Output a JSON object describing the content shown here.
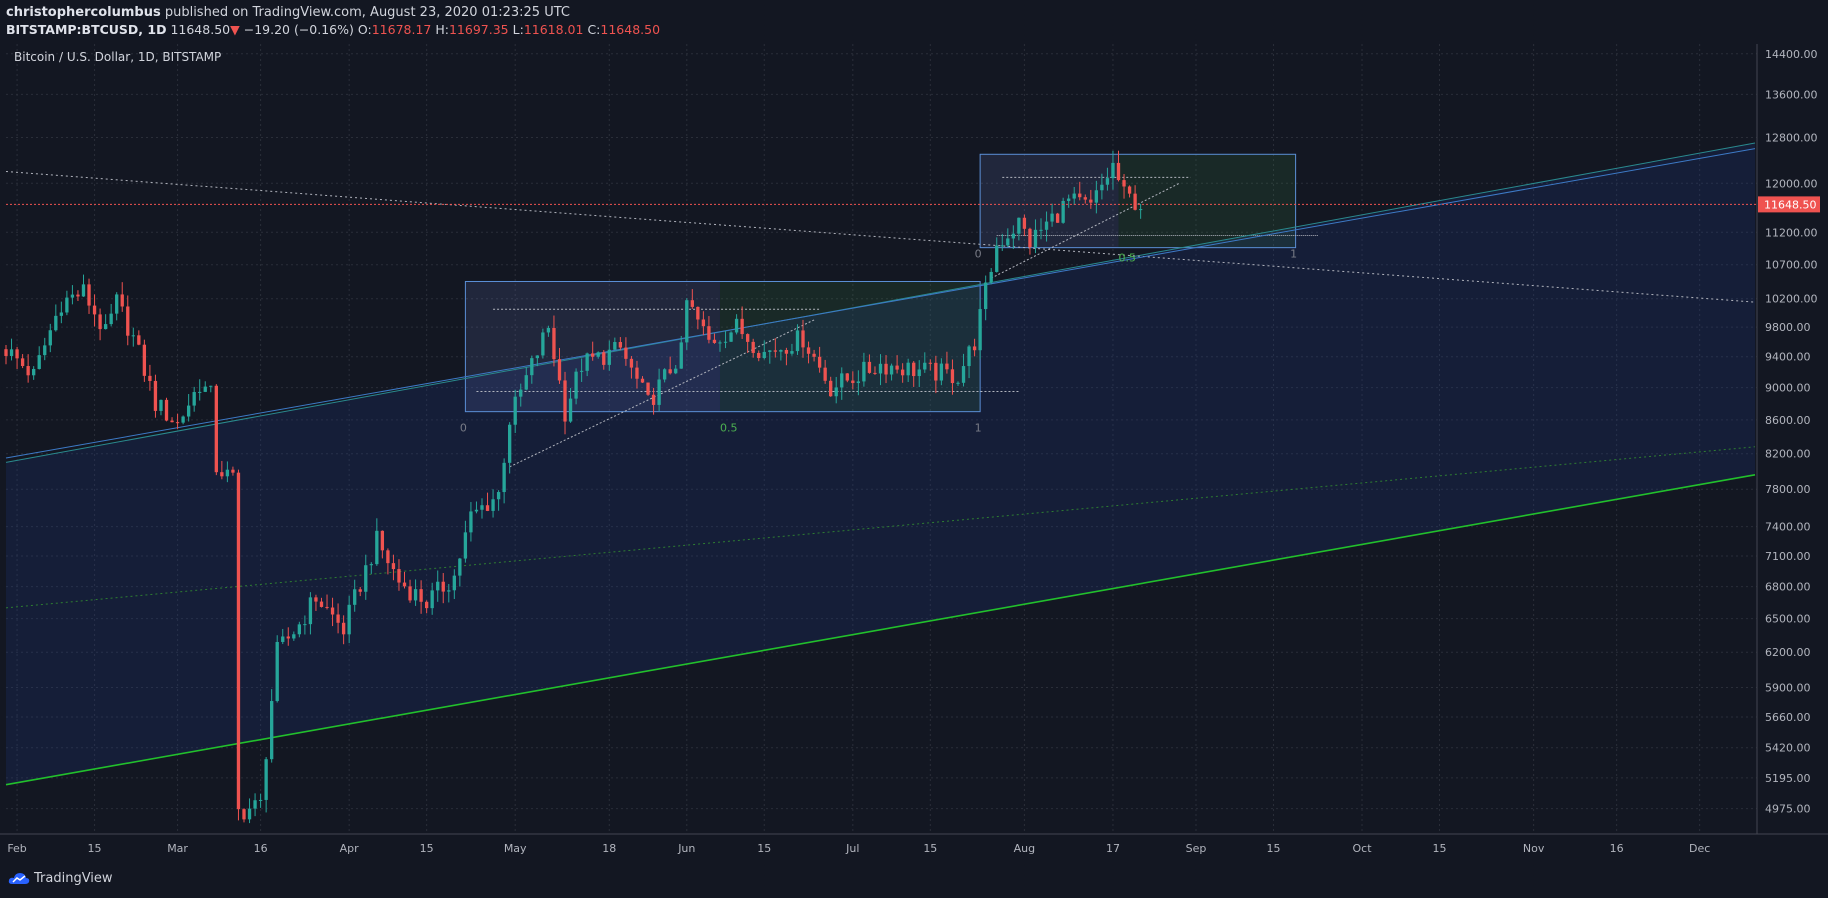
{
  "header": {
    "author": "christophercolumbus",
    "published": "published on TradingView.com, August 23, 2020 01:23:25 UTC",
    "symbol": "BITSTAMP:BTCUSD, 1D",
    "last": "11648.50",
    "arrow": "▼",
    "change": "−19.20 (−0.16%)",
    "o_label": "O:",
    "o": "11678.17",
    "h_label": "H:",
    "h": "11697.35",
    "l_label": "L:",
    "l": "11618.01",
    "c_label": "C:",
    "c": "11648.50"
  },
  "footer": {
    "brand": "TradingView"
  },
  "colors": {
    "background": "#131722",
    "up": "#26a69a",
    "down": "#ef5350",
    "trend": "#22c02c"
  },
  "chart_data": {
    "type": "candlestick",
    "title": "Bitcoin / U.S. Dollar, 1D, BITSTAMP",
    "y_scale": "log",
    "ylim": [
      4800,
      14600
    ],
    "xlim": [
      "2020-01-30",
      "2020-12-11"
    ],
    "y_ticks": [
      14400,
      13600,
      12800,
      12000,
      11200,
      10700,
      10200,
      9800,
      9400,
      9000,
      8600,
      8200,
      7800,
      7400,
      7100,
      6800,
      6500,
      6200,
      5900,
      5660,
      5420,
      5195,
      4975
    ],
    "y_tick_labels": [
      "14400.00",
      "13600.00",
      "12800.00",
      "12000.00",
      "11200.00",
      "10700.00",
      "10200.00",
      "9800.00",
      "9400.00",
      "9000.00",
      "8600.00",
      "8200.00",
      "7800.00",
      "7400.00",
      "7100.00",
      "6800.00",
      "6500.00",
      "6200.00",
      "5900.00",
      "5660.00",
      "5420.00",
      "5195.00",
      "4975.00"
    ],
    "x_ticks": [
      {
        "date": "2020-02-01",
        "label": "Feb"
      },
      {
        "date": "2020-02-15",
        "label": "15"
      },
      {
        "date": "2020-03-01",
        "label": "Mar"
      },
      {
        "date": "2020-03-16",
        "label": "16"
      },
      {
        "date": "2020-04-01",
        "label": "Apr"
      },
      {
        "date": "2020-04-15",
        "label": "15"
      },
      {
        "date": "2020-05-01",
        "label": "May"
      },
      {
        "date": "2020-05-18",
        "label": "18"
      },
      {
        "date": "2020-06-01",
        "label": "Jun"
      },
      {
        "date": "2020-06-15",
        "label": "15"
      },
      {
        "date": "2020-07-01",
        "label": "Jul"
      },
      {
        "date": "2020-07-15",
        "label": "15"
      },
      {
        "date": "2020-08-01",
        "label": "Aug"
      },
      {
        "date": "2020-08-17",
        "label": "17"
      },
      {
        "date": "2020-09-01",
        "label": "Sep"
      },
      {
        "date": "2020-09-15",
        "label": "15"
      },
      {
        "date": "2020-10-01",
        "label": "Oct"
      },
      {
        "date": "2020-10-15",
        "label": "15"
      },
      {
        "date": "2020-11-01",
        "label": "Nov"
      },
      {
        "date": "2020-11-16",
        "label": "16"
      },
      {
        "date": "2020-12-01",
        "label": "Dec"
      }
    ],
    "last_price": 11648.5,
    "last_price_label": "11648.50",
    "close_anchors": [
      [
        "2020-01-30",
        9500
      ],
      [
        "2020-02-04",
        9150
      ],
      [
        "2020-02-09",
        10150
      ],
      [
        "2020-02-13",
        10300
      ],
      [
        "2020-02-17",
        9700
      ],
      [
        "2020-02-19",
        10150
      ],
      [
        "2020-02-22",
        9650
      ],
      [
        "2020-02-26",
        8800
      ],
      [
        "2020-03-01",
        8550
      ],
      [
        "2020-03-05",
        9050
      ],
      [
        "2020-03-07",
        8900
      ],
      [
        "2020-03-08",
        8050
      ],
      [
        "2020-03-11",
        7900
      ],
      [
        "2020-03-12",
        4950
      ],
      [
        "2020-03-16",
        5000
      ],
      [
        "2020-03-19",
        6200
      ],
      [
        "2020-03-23",
        6450
      ],
      [
        "2020-03-26",
        6700
      ],
      [
        "2020-03-31",
        6400
      ],
      [
        "2020-04-06",
        7250
      ],
      [
        "2020-04-10",
        6850
      ],
      [
        "2020-04-15",
        6650
      ],
      [
        "2020-04-20",
        6900
      ],
      [
        "2020-04-23",
        7500
      ],
      [
        "2020-04-28",
        7750
      ],
      [
        "2020-04-30",
        8600
      ],
      [
        "2020-05-07",
        9800
      ],
      [
        "2020-05-10",
        8700
      ],
      [
        "2020-05-13",
        9300
      ],
      [
        "2020-05-20",
        9500
      ],
      [
        "2020-05-25",
        8800
      ],
      [
        "2020-05-31",
        9450
      ],
      [
        "2020-06-01",
        10150
      ],
      [
        "2020-06-05",
        9600
      ],
      [
        "2020-06-10",
        9800
      ],
      [
        "2020-06-15",
        9450
      ],
      [
        "2020-06-22",
        9650
      ],
      [
        "2020-06-27",
        9000
      ],
      [
        "2020-07-06",
        9300
      ],
      [
        "2020-07-15",
        9200
      ],
      [
        "2020-07-20",
        9150
      ],
      [
        "2020-07-23",
        9600
      ],
      [
        "2020-07-27",
        11000
      ],
      [
        "2020-07-31",
        11350
      ],
      [
        "2020-08-02",
        11050
      ],
      [
        "2020-08-09",
        11700
      ],
      [
        "2020-08-13",
        11600
      ],
      [
        "2020-08-17",
        12300
      ],
      [
        "2020-08-19",
        11800
      ],
      [
        "2020-08-22",
        11648
      ]
    ],
    "lines": [
      {
        "name": "lower-trendline",
        "style": "solid",
        "color": "#22c02c",
        "from": [
          "2020-01-30",
          5145
        ],
        "to": [
          "2020-12-11",
          7960
        ]
      },
      {
        "name": "mid-trendline",
        "style": "dotted",
        "color": "#2e7d32",
        "from": [
          "2020-01-30",
          6600
        ],
        "to": [
          "2020-12-11",
          8280
        ]
      },
      {
        "name": "upper-channel-line",
        "style": "solid",
        "color": "#2a8a8e",
        "from": [
          "2020-01-30",
          8100
        ],
        "to": [
          "2020-12-11",
          12700
        ]
      },
      {
        "name": "descending-resistance",
        "style": "dotted",
        "color": "#b2b5be",
        "from": [
          "2020-01-30",
          12200
        ],
        "to": [
          "2020-12-11",
          10150
        ]
      }
    ],
    "annotations": [
      {
        "text": "0",
        "date": "2020-04-22",
        "price": 8580
      },
      {
        "text": "0.5",
        "date": "2020-06-07",
        "price": 8580
      },
      {
        "text": "1",
        "date": "2020-07-24",
        "price": 8580
      },
      {
        "text": "0",
        "date": "2020-07-24",
        "price": 10960
      },
      {
        "text": "0.5",
        "date": "2020-08-18",
        "price": 10900
      },
      {
        "text": "1",
        "date": "2020-09-19",
        "price": 10960
      }
    ]
  }
}
